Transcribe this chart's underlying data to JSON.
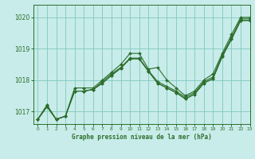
{
  "title": "Graphe pression niveau de la mer (hPa)",
  "bg_color": "#c8ece9",
  "grid_color": "#80c8c0",
  "line_color": "#2d6e2d",
  "xlim": [
    -0.5,
    23
  ],
  "ylim": [
    1016.6,
    1020.4
  ],
  "yticks": [
    1017,
    1018,
    1019,
    1020
  ],
  "xticks": [
    0,
    1,
    2,
    3,
    4,
    5,
    6,
    7,
    8,
    9,
    10,
    11,
    12,
    13,
    14,
    15,
    16,
    17,
    18,
    19,
    20,
    21,
    22,
    23
  ],
  "s1": [
    1016.75,
    1017.2,
    1016.75,
    1016.85,
    1017.75,
    1017.75,
    1017.75,
    1018.0,
    1018.25,
    1018.5,
    1018.85,
    1018.85,
    1018.35,
    1018.4,
    1018.0,
    1017.75,
    1017.5,
    1017.65,
    1018.0,
    1018.2,
    1018.85,
    1019.45,
    1020.0,
    1020.0
  ],
  "s2": [
    1016.75,
    1017.2,
    1016.75,
    1016.85,
    1017.65,
    1017.65,
    1017.7,
    1017.95,
    1018.2,
    1018.4,
    1018.7,
    1018.7,
    1018.3,
    1017.95,
    1017.8,
    1017.65,
    1017.45,
    1017.6,
    1017.95,
    1018.1,
    1018.8,
    1019.35,
    1019.95,
    1019.95
  ],
  "s3": [
    1016.75,
    1017.15,
    1016.75,
    1016.85,
    1017.65,
    1017.65,
    1017.7,
    1017.9,
    1018.15,
    1018.38,
    1018.68,
    1018.68,
    1018.28,
    1017.9,
    1017.75,
    1017.6,
    1017.4,
    1017.55,
    1017.9,
    1018.05,
    1018.75,
    1019.3,
    1019.9,
    1019.9
  ],
  "s4": [
    1016.75,
    1017.15,
    1016.75,
    1016.85,
    1017.65,
    1017.65,
    1017.7,
    1017.9,
    1018.15,
    1018.38,
    1018.68,
    1018.68,
    1018.28,
    1017.9,
    1017.75,
    1017.6,
    1017.4,
    1017.55,
    1017.9,
    1018.05,
    1018.75,
    1019.3,
    1019.9,
    1019.9
  ]
}
